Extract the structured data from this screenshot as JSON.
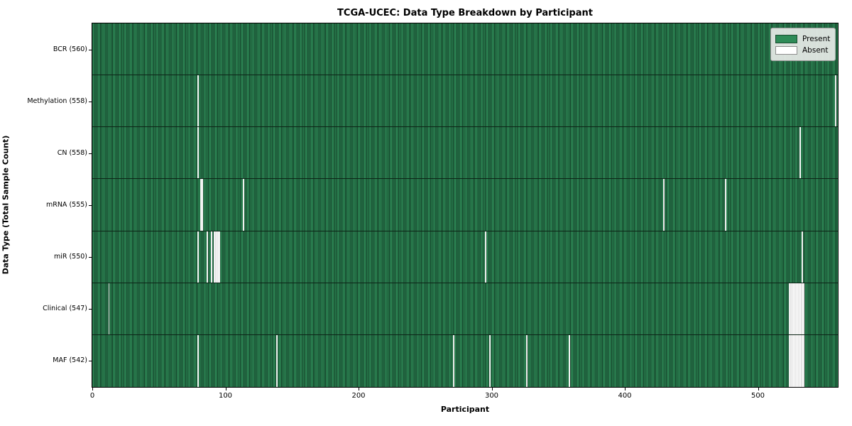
{
  "figure": {
    "background_color": "#ffffff"
  },
  "chart_data": {
    "type": "heatmap",
    "title": "TCGA-UCEC: Data Type Breakdown by Participant",
    "xlabel": "Participant",
    "ylabel": "Data Type (Total Sample Count)",
    "x_ticks": [
      0,
      100,
      200,
      300,
      400,
      500
    ],
    "x_range": [
      0,
      560
    ],
    "n_participants": 560,
    "grid": false,
    "legend_position": "upper right",
    "colors": {
      "present": "#2e8b57",
      "present_edge": "#113a24",
      "absent": "#ffffff",
      "row_separator": "#0c2416"
    },
    "legend": [
      {
        "label": "Present",
        "color": "#2e8b57"
      },
      {
        "label": "Absent",
        "color": "#ffffff"
      }
    ],
    "rows": [
      {
        "label": "BCR (560)",
        "data_type": "BCR",
        "present_count": 560,
        "absent_participants": []
      },
      {
        "label": "Methylation (558)",
        "data_type": "Methylation",
        "present_count": 558,
        "absent_participants": [
          79,
          558
        ]
      },
      {
        "label": "CN (558)",
        "data_type": "CN",
        "present_count": 558,
        "absent_participants": [
          79,
          531
        ]
      },
      {
        "label": "mRNA (555)",
        "data_type": "mRNA",
        "present_count": 555,
        "absent_participants": [
          81,
          82,
          113,
          429,
          475
        ]
      },
      {
        "label": "miR (550)",
        "data_type": "miR",
        "present_count": 550,
        "absent_participants": [
          79,
          86,
          89,
          91,
          92,
          93,
          94,
          95,
          295,
          533
        ]
      },
      {
        "label": "Clinical (547)",
        "data_type": "Clinical",
        "present_count": 547,
        "absent_participants": [
          12,
          523,
          524,
          525,
          526,
          527,
          528,
          529,
          530,
          531,
          532,
          533,
          534
        ]
      },
      {
        "label": "MAF (542)",
        "data_type": "MAF",
        "present_count": 542,
        "absent_participants": [
          79,
          138,
          271,
          298,
          326,
          358,
          523,
          524,
          525,
          526,
          527,
          528,
          529,
          530,
          531,
          532,
          533,
          534
        ]
      }
    ]
  }
}
